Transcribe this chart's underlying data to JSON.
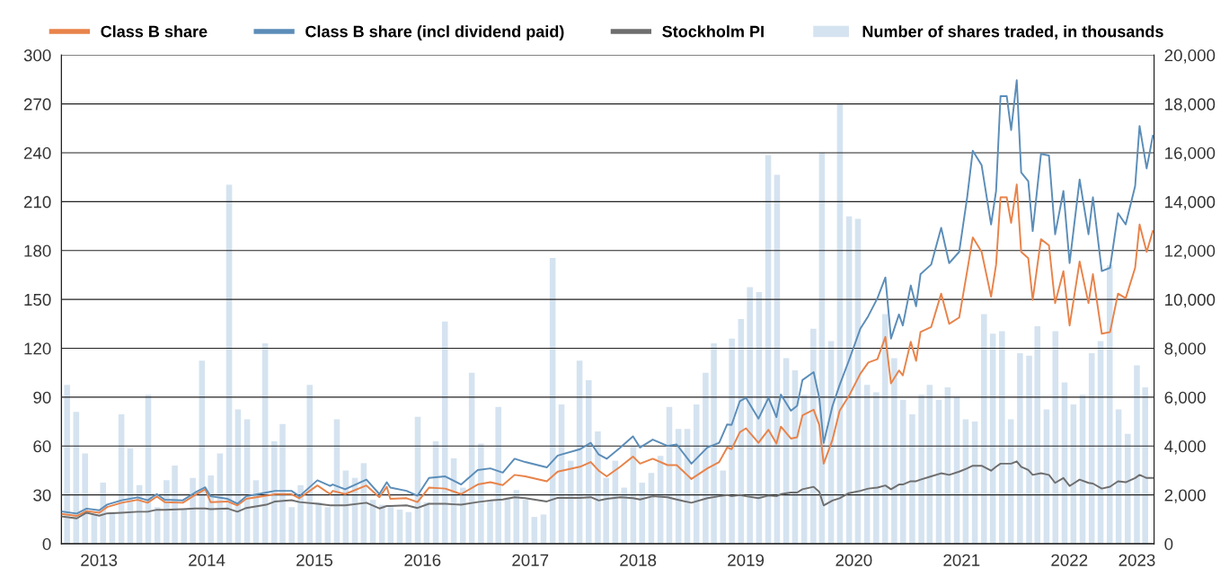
{
  "chart_data": {
    "type": "line",
    "xlim": [
      "2013-02-24",
      "2023-04-14"
    ],
    "xticks": [
      {
        "value": "2013-07-01",
        "label": "2013"
      },
      {
        "value": "2014-07-01",
        "label": "2014"
      },
      {
        "value": "2015-07-01",
        "label": "2015"
      },
      {
        "value": "2016-07-01",
        "label": "2016"
      },
      {
        "value": "2017-07-01",
        "label": "2017"
      },
      {
        "value": "2018-07-01",
        "label": "2018"
      },
      {
        "value": "2019-07-01",
        "label": "2019"
      },
      {
        "value": "2020-07-01",
        "label": "2020"
      },
      {
        "value": "2021-07-01",
        "label": "2021"
      },
      {
        "value": "2022-07-01",
        "label": "2022"
      },
      {
        "value": "2023-02-15",
        "label": "2023"
      }
    ],
    "ylim": [
      0,
      300
    ],
    "yticks": [
      0,
      30,
      60,
      90,
      120,
      150,
      180,
      210,
      240,
      270,
      300
    ],
    "y2lim": [
      0,
      20000
    ],
    "y2ticks": [
      {
        "value": 0,
        "label": "0"
      },
      {
        "value": 2000,
        "label": "2,000"
      },
      {
        "value": 4000,
        "label": "4,000"
      },
      {
        "value": 6000,
        "label": "6,000"
      },
      {
        "value": 8000,
        "label": "8,000"
      },
      {
        "value": 10000,
        "label": "10,000"
      },
      {
        "value": 12000,
        "label": "12,000"
      },
      {
        "value": 14000,
        "label": "14,000"
      },
      {
        "value": 16000,
        "label": "16,000"
      },
      {
        "value": 18000,
        "label": "18,000"
      },
      {
        "value": 20000,
        "label": "20,000"
      }
    ],
    "grid": "y",
    "legend": "top",
    "series": [
      {
        "name": "Class B share",
        "color": "#e8834a",
        "x": [
          "2013-02-27",
          "2013-04-17",
          "2013-05-20",
          "2013-07-02",
          "2013-07-29",
          "2013-09-16",
          "2013-11-09",
          "2013-12-13",
          "2014-01-13",
          "2014-02-09",
          "2014-04-11",
          "2014-05-23",
          "2014-06-26",
          "2014-07-14",
          "2014-09-10",
          "2014-10-13",
          "2014-11-12",
          "2015-01-19",
          "2015-02-18",
          "2015-04-14",
          "2015-05-11",
          "2015-07-11",
          "2015-08-23",
          "2015-09-01",
          "2015-10-13",
          "2015-12-24",
          "2016-02-06",
          "2016-03-02",
          "2016-03-14",
          "2016-05-08",
          "2016-06-14",
          "2016-07-23",
          "2016-09-16",
          "2016-11-09",
          "2017-01-04",
          "2017-02-16",
          "2017-03-30",
          "2017-05-09",
          "2017-06-14",
          "2017-08-26",
          "2017-10-02",
          "2017-12-17",
          "2018-01-22",
          "2018-02-18",
          "2018-03-17",
          "2018-05-02",
          "2018-06-14",
          "2018-07-08",
          "2018-08-20",
          "2018-10-09",
          "2018-11-09",
          "2018-12-29",
          "2019-02-21",
          "2019-04-02",
          "2019-04-29",
          "2019-05-14",
          "2019-06-11",
          "2019-07-02",
          "2019-08-13",
          "2019-09-16",
          "2019-10-13",
          "2019-10-28",
          "2019-12-01",
          "2019-12-22",
          "2020-01-09",
          "2020-02-16",
          "2020-03-06",
          "2020-03-21",
          "2020-04-20",
          "2020-05-14",
          "2020-06-14",
          "2020-07-23",
          "2020-08-19",
          "2020-09-19",
          "2020-10-16",
          "2020-11-04",
          "2020-12-01",
          "2020-12-14",
          "2021-01-10",
          "2021-01-28",
          "2021-02-12",
          "2021-03-20",
          "2021-04-23",
          "2021-05-20",
          "2021-06-23",
          "2021-07-20",
          "2021-08-08",
          "2021-09-07",
          "2021-10-09",
          "2021-10-26",
          "2021-11-10",
          "2021-12-01",
          "2021-12-16",
          "2022-01-04",
          "2022-01-19",
          "2022-02-12",
          "2022-02-27",
          "2022-03-27",
          "2022-04-23",
          "2022-05-14",
          "2022-06-11",
          "2022-07-02",
          "2022-08-05",
          "2022-09-04",
          "2022-09-19",
          "2022-10-19",
          "2022-11-16",
          "2022-12-13",
          "2023-01-08",
          "2023-02-09",
          "2023-02-24",
          "2023-03-20",
          "2023-04-10"
        ],
        "values": [
          18.3,
          17.1,
          20.1,
          19.1,
          22.6,
          25.2,
          27.0,
          25.2,
          29.0,
          25.6,
          25.2,
          30.0,
          33.5,
          25.6,
          26.0,
          23.6,
          27.6,
          29.5,
          30.5,
          30.5,
          28.0,
          35.8,
          30.5,
          32.5,
          30.5,
          35.8,
          28.6,
          35.0,
          27.6,
          28.0,
          25.6,
          34.5,
          33.9,
          30.5,
          36.4,
          37.8,
          36.0,
          42.3,
          41.4,
          38.4,
          44.3,
          47.3,
          50.2,
          44.9,
          41.4,
          47.3,
          53.6,
          49.2,
          52.2,
          48.3,
          48.3,
          39.8,
          46.3,
          50.2,
          59.1,
          58.1,
          68.5,
          70.9,
          62.0,
          70.0,
          61.5,
          71.9,
          64.6,
          65.4,
          78.8,
          82.3,
          72.9,
          49.2,
          64.0,
          81.7,
          90.6,
          104.4,
          111.3,
          113.3,
          127.0,
          98.5,
          106.4,
          103.4,
          124.0,
          112.3,
          130.0,
          133.0,
          153.6,
          135.0,
          138.9,
          167.4,
          188.1,
          179.2,
          151.7,
          171.4,
          212.7,
          212.7,
          197.0,
          220.6,
          179.2,
          175.3,
          149.7,
          187.0,
          183.2,
          147.7,
          167.4,
          134.0,
          173.3,
          147.7,
          165.5,
          129.0,
          130.0,
          153.6,
          150.7,
          169.4,
          196.0,
          179.2,
          192.0
        ]
      },
      {
        "name": "Class B share (incl dividend paid)",
        "color": "#5b8db8",
        "x": [
          "2013-02-27",
          "2013-04-17",
          "2013-05-20",
          "2013-07-02",
          "2013-07-29",
          "2013-09-16",
          "2013-11-09",
          "2013-12-13",
          "2014-01-13",
          "2014-02-09",
          "2014-04-11",
          "2014-05-23",
          "2014-06-26",
          "2014-07-14",
          "2014-09-10",
          "2014-10-13",
          "2014-11-12",
          "2015-01-19",
          "2015-02-18",
          "2015-04-14",
          "2015-05-11",
          "2015-07-11",
          "2015-08-23",
          "2015-09-01",
          "2015-10-13",
          "2015-12-24",
          "2016-02-06",
          "2016-03-02",
          "2016-03-14",
          "2016-05-08",
          "2016-06-14",
          "2016-07-23",
          "2016-09-16",
          "2016-11-09",
          "2017-01-04",
          "2017-02-16",
          "2017-03-30",
          "2017-05-09",
          "2017-06-14",
          "2017-08-26",
          "2017-10-02",
          "2017-12-17",
          "2018-01-22",
          "2018-02-18",
          "2018-03-17",
          "2018-05-02",
          "2018-06-14",
          "2018-07-08",
          "2018-08-20",
          "2018-10-09",
          "2018-11-09",
          "2018-12-29",
          "2019-02-21",
          "2019-04-02",
          "2019-04-29",
          "2019-05-14",
          "2019-06-11",
          "2019-07-02",
          "2019-08-13",
          "2019-09-16",
          "2019-10-13",
          "2019-10-28",
          "2019-12-01",
          "2019-12-22",
          "2020-01-09",
          "2020-02-16",
          "2020-03-06",
          "2020-03-21",
          "2020-04-20",
          "2020-05-14",
          "2020-06-14",
          "2020-07-23",
          "2020-08-19",
          "2020-09-19",
          "2020-10-16",
          "2020-11-04",
          "2020-12-01",
          "2020-12-14",
          "2021-01-10",
          "2021-01-28",
          "2021-02-12",
          "2021-03-20",
          "2021-04-23",
          "2021-05-20",
          "2021-06-23",
          "2021-07-20",
          "2021-08-08",
          "2021-09-07",
          "2021-10-09",
          "2021-10-26",
          "2021-11-10",
          "2021-12-01",
          "2021-12-16",
          "2022-01-04",
          "2022-01-19",
          "2022-02-12",
          "2022-02-27",
          "2022-03-27",
          "2022-04-23",
          "2022-05-14",
          "2022-06-11",
          "2022-07-02",
          "2022-08-05",
          "2022-09-04",
          "2022-09-19",
          "2022-10-19",
          "2022-11-16",
          "2022-12-13",
          "2023-01-08",
          "2023-02-09",
          "2023-02-24",
          "2023-03-20",
          "2023-04-10"
        ],
        "values": [
          19.8,
          18.6,
          21.6,
          20.6,
          24.1,
          26.7,
          28.5,
          26.7,
          30.5,
          27.1,
          26.7,
          31.5,
          34.7,
          29.2,
          27.6,
          24.6,
          29.2,
          31.5,
          32.5,
          32.5,
          29.2,
          39.0,
          35.5,
          36.4,
          33.5,
          39.4,
          30.5,
          37.8,
          34.5,
          32.5,
          29.5,
          40.4,
          41.4,
          36.4,
          45.3,
          46.3,
          43.7,
          52.2,
          50.2,
          46.9,
          54.2,
          58.1,
          62.0,
          54.8,
          52.2,
          59.1,
          66.0,
          59.1,
          64.0,
          60.1,
          61.0,
          49.2,
          59.1,
          62.0,
          73.3,
          73.0,
          87.6,
          89.6,
          76.8,
          89.6,
          77.8,
          91.6,
          81.7,
          84.7,
          100.5,
          105.4,
          89.6,
          62.0,
          84.7,
          97.5,
          112.3,
          132.0,
          139.8,
          150.7,
          163.5,
          126.0,
          140.8,
          134.0,
          158.6,
          145.8,
          165.5,
          171.4,
          194.0,
          172.3,
          179.2,
          212.7,
          241.3,
          232.4,
          196.0,
          216.6,
          274.8,
          274.8,
          254.0,
          284.6,
          228.0,
          222.6,
          192.0,
          239.3,
          238.4,
          190.0,
          216.6,
          172.3,
          223.6,
          190.0,
          212.7,
          167.4,
          169.4,
          202.9,
          196.0,
          219.6,
          256.5,
          230.4,
          250.5
        ]
      },
      {
        "name": "Stockholm PI",
        "color": "#6e6e6e",
        "x": [
          "2013-02-27",
          "2013-04-17",
          "2013-05-20",
          "2013-07-02",
          "2013-07-29",
          "2013-09-16",
          "2013-11-09",
          "2013-12-13",
          "2014-01-13",
          "2014-02-09",
          "2014-04-11",
          "2014-05-23",
          "2014-06-26",
          "2014-07-14",
          "2014-09-10",
          "2014-10-13",
          "2014-11-12",
          "2015-01-19",
          "2015-02-18",
          "2015-04-14",
          "2015-05-11",
          "2015-07-11",
          "2015-08-23",
          "2015-09-01",
          "2015-10-13",
          "2015-12-24",
          "2016-02-06",
          "2016-03-02",
          "2016-03-14",
          "2016-05-08",
          "2016-06-14",
          "2016-07-23",
          "2016-09-16",
          "2016-11-09",
          "2017-01-04",
          "2017-02-16",
          "2017-03-30",
          "2017-05-09",
          "2017-06-14",
          "2017-08-26",
          "2017-10-02",
          "2017-12-17",
          "2018-01-22",
          "2018-02-18",
          "2018-03-17",
          "2018-05-02",
          "2018-06-14",
          "2018-07-08",
          "2018-08-20",
          "2018-10-09",
          "2018-11-09",
          "2018-12-29",
          "2019-02-21",
          "2019-04-02",
          "2019-04-29",
          "2019-05-14",
          "2019-06-11",
          "2019-07-02",
          "2019-08-13",
          "2019-09-16",
          "2019-10-13",
          "2019-10-28",
          "2019-12-01",
          "2019-12-22",
          "2020-01-09",
          "2020-02-16",
          "2020-03-06",
          "2020-03-21",
          "2020-04-20",
          "2020-05-14",
          "2020-06-14",
          "2020-07-23",
          "2020-08-19",
          "2020-09-19",
          "2020-10-16",
          "2020-11-04",
          "2020-12-01",
          "2020-12-14",
          "2021-01-10",
          "2021-01-28",
          "2021-02-12",
          "2021-03-20",
          "2021-04-23",
          "2021-05-20",
          "2021-06-23",
          "2021-07-20",
          "2021-08-08",
          "2021-09-07",
          "2021-10-09",
          "2021-10-26",
          "2021-11-10",
          "2021-12-01",
          "2021-12-16",
          "2022-01-04",
          "2022-01-19",
          "2022-02-12",
          "2022-02-27",
          "2022-03-27",
          "2022-04-23",
          "2022-05-14",
          "2022-06-11",
          "2022-07-02",
          "2022-08-05",
          "2022-09-04",
          "2022-09-19",
          "2022-10-19",
          "2022-11-16",
          "2022-12-13",
          "2023-01-08",
          "2023-02-09",
          "2023-02-24",
          "2023-03-20",
          "2023-04-10"
        ],
        "values": [
          16.8,
          15.6,
          19.1,
          17.3,
          18.7,
          19.1,
          19.7,
          19.7,
          20.9,
          20.9,
          21.3,
          21.7,
          21.7,
          21.3,
          21.7,
          19.7,
          22.0,
          24.0,
          26.0,
          26.8,
          25.6,
          24.6,
          23.6,
          23.6,
          23.6,
          25.2,
          21.7,
          23.2,
          23.2,
          23.6,
          22.0,
          24.6,
          24.6,
          24.0,
          25.6,
          26.6,
          27.2,
          28.6,
          28.0,
          26.0,
          28.2,
          28.2,
          28.6,
          26.6,
          27.6,
          28.6,
          28.0,
          27.2,
          29.2,
          28.6,
          27.2,
          25.2,
          28.0,
          29.2,
          30.0,
          29.2,
          30.0,
          29.2,
          28.0,
          29.6,
          29.2,
          30.5,
          31.5,
          31.5,
          33.5,
          35.0,
          31.9,
          23.6,
          26.6,
          28.0,
          31.1,
          32.5,
          33.9,
          34.5,
          35.8,
          33.5,
          36.4,
          36.4,
          38.4,
          38.4,
          39.4,
          41.4,
          43.3,
          42.3,
          44.3,
          46.3,
          47.9,
          47.9,
          44.9,
          47.3,
          49.2,
          49.2,
          49.2,
          50.6,
          47.3,
          45.3,
          42.3,
          43.3,
          42.3,
          37.4,
          40.4,
          35.5,
          39.4,
          37.4,
          37.0,
          33.9,
          35.1,
          38.4,
          37.8,
          40.4,
          42.3,
          40.4,
          40.4
        ]
      },
      {
        "name": "Number of shares traded, in thousands",
        "type": "bar",
        "axis": "y2",
        "color": "#d5e3f0",
        "x": [
          "2013-03-15",
          "2013-04-15",
          "2013-05-15",
          "2013-06-15",
          "2013-07-15",
          "2013-08-15",
          "2013-09-15",
          "2013-10-15",
          "2013-11-15",
          "2013-12-15",
          "2014-01-15",
          "2014-02-15",
          "2014-03-15",
          "2014-04-15",
          "2014-05-15",
          "2014-06-15",
          "2014-07-15",
          "2014-08-15",
          "2014-09-15",
          "2014-10-15",
          "2014-11-15",
          "2014-12-15",
          "2015-01-15",
          "2015-02-15",
          "2015-03-15",
          "2015-04-15",
          "2015-05-15",
          "2015-06-15",
          "2015-07-15",
          "2015-08-15",
          "2015-09-15",
          "2015-10-15",
          "2015-11-15",
          "2015-12-15",
          "2016-01-15",
          "2016-02-15",
          "2016-03-15",
          "2016-04-15",
          "2016-05-15",
          "2016-06-15",
          "2016-07-15",
          "2016-08-15",
          "2016-09-15",
          "2016-10-15",
          "2016-11-15",
          "2016-12-15",
          "2017-01-15",
          "2017-02-15",
          "2017-03-15",
          "2017-04-15",
          "2017-05-15",
          "2017-06-15",
          "2017-07-15",
          "2017-08-15",
          "2017-09-15",
          "2017-10-15",
          "2017-11-15",
          "2017-12-15",
          "2018-01-15",
          "2018-02-15",
          "2018-03-15",
          "2018-04-15",
          "2018-05-15",
          "2018-06-15",
          "2018-07-15",
          "2018-08-15",
          "2018-09-15",
          "2018-10-15",
          "2018-11-15",
          "2018-12-15",
          "2019-01-15",
          "2019-02-15",
          "2019-03-15",
          "2019-04-15",
          "2019-05-15",
          "2019-06-15",
          "2019-07-15",
          "2019-08-15",
          "2019-09-15",
          "2019-10-15",
          "2019-11-15",
          "2019-12-15",
          "2020-01-15",
          "2020-02-15",
          "2020-03-15",
          "2020-04-15",
          "2020-05-15",
          "2020-06-15",
          "2020-07-15",
          "2020-08-15",
          "2020-09-15",
          "2020-10-15",
          "2020-11-15",
          "2020-12-15",
          "2021-01-15",
          "2021-02-15",
          "2021-03-15",
          "2021-04-15",
          "2021-05-15",
          "2021-06-15",
          "2021-07-15",
          "2021-08-15",
          "2021-09-15",
          "2021-10-15",
          "2021-11-15",
          "2021-12-15",
          "2022-01-15",
          "2022-02-15",
          "2022-03-15",
          "2022-04-15",
          "2022-05-15",
          "2022-06-15",
          "2022-07-15",
          "2022-08-15",
          "2022-09-15",
          "2022-10-15",
          "2022-11-15",
          "2022-12-15",
          "2023-01-15",
          "2023-02-15",
          "2023-03-15"
        ],
        "values": [
          6500,
          5400,
          3700,
          1200,
          2500,
          1300,
          5300,
          3900,
          2400,
          6100,
          1500,
          2600,
          3200,
          1400,
          2700,
          7500,
          2800,
          3700,
          14700,
          5500,
          5100,
          2600,
          8200,
          4200,
          4900,
          1500,
          2400,
          6500,
          1700,
          1500,
          5100,
          3000,
          2700,
          3300,
          1800,
          1600,
          1500,
          1400,
          1300,
          5200,
          1700,
          4200,
          9100,
          3500,
          2300,
          7000,
          4100,
          1800,
          5600,
          1900,
          2200,
          1800,
          1100,
          1200,
          11700,
          5700,
          3400,
          7500,
          6700,
          4600,
          2700,
          3400,
          2300,
          4000,
          2500,
          2900,
          3600,
          5600,
          4700,
          4700,
          5700,
          7000,
          8200,
          3000,
          8400,
          9200,
          10500,
          10300,
          15900,
          15100,
          7600,
          7100,
          6100,
          8800,
          16000,
          8300,
          18000,
          13400,
          13300,
          6500,
          6200,
          9400,
          7600,
          5900,
          5300,
          6100,
          6500,
          5900,
          6400,
          6000,
          5100,
          5000,
          9400,
          8600,
          8700,
          5100,
          7800,
          7700,
          8900,
          5500,
          8700,
          6600,
          5700,
          6100,
          7800,
          8300,
          11400,
          5500,
          4500,
          7300,
          6400
        ]
      }
    ]
  }
}
